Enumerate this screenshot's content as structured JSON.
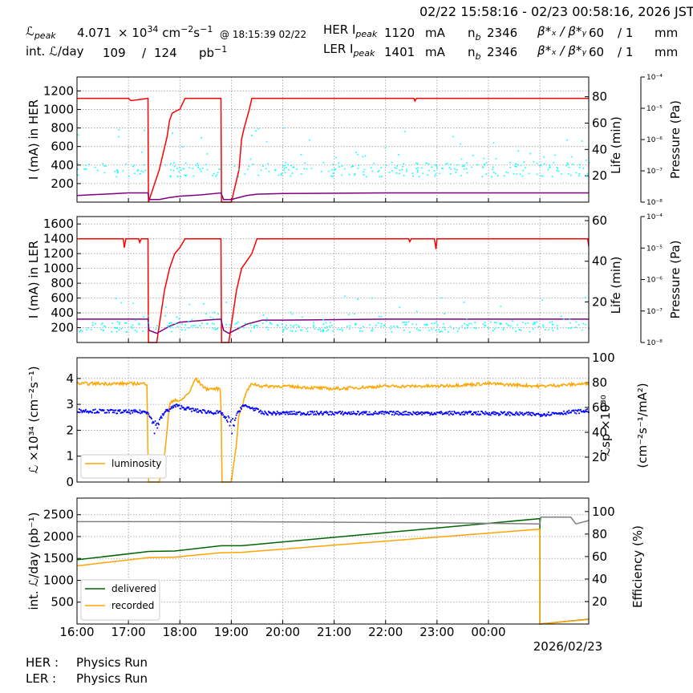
{
  "header": {
    "date_range": "02/22 15:58:16 - 02/23 00:58:16, 2026 JST",
    "lpeak_label": "ℒ",
    "lpeak_sub": "peak",
    "lpeak_value": "4.071",
    "lpeak_unit_a": "× 10",
    "lpeak_unit_exp": "34",
    "lpeak_unit_b": "cm",
    "lpeak_unit_b_exp": "−2",
    "lpeak_unit_c": "s",
    "lpeak_unit_c_exp": "−1",
    "lpeak_time": "@ 18:15:39 02/22",
    "intl_label": "int. ℒ/day",
    "intl_value": "109",
    "intl_slash": "/",
    "intl_total": "124",
    "intl_unit": "pb",
    "intl_unit_exp": "−1",
    "her_ipeak_label": "HER I",
    "her_ipeak_sub": "peak",
    "her_ipeak_value": "1120",
    "her_ipeak_unit": "mA",
    "ler_ipeak_label": "LER I",
    "ler_ipeak_sub": "peak",
    "ler_ipeak_value": "1401",
    "ler_ipeak_unit": "mA",
    "nb_label": "n",
    "nb_sub": "b",
    "her_nb": "2346",
    "ler_nb": "2346",
    "beta_label": "β*ₓ / β*ᵧ",
    "her_beta_x": "60",
    "her_beta_y": "/ 1",
    "ler_beta_x": "60",
    "ler_beta_y": "/ 1",
    "beta_unit": "mm"
  },
  "footer": {
    "her_label": "HER :",
    "her_status": "Physics Run",
    "ler_label": "LER :",
    "ler_status": "Physics Run"
  },
  "colors": {
    "current": "#ff0000",
    "life": "#800080",
    "pressure": "#00ffff",
    "luminosity": "#ffa500",
    "specific_lumi": "#0000ff",
    "delivered": "#006400",
    "recorded": "#ffa500",
    "efficiency": "#808080",
    "grid": "#999999"
  },
  "chart_data": [
    {
      "type": "line",
      "ylabel": "I (mA) in HER",
      "y2label": "Life (min)",
      "y3label": "Pressure (Pa)",
      "ylim": [
        0,
        1350
      ],
      "yticks": [
        200,
        400,
        600,
        800,
        1000,
        1200
      ],
      "y2lim": [
        0,
        95
      ],
      "y2ticks": [
        20,
        40,
        60,
        80
      ],
      "y3ticks": [
        "10⁻⁸",
        "10⁻⁷",
        "10⁻⁶",
        "10⁻⁵",
        "10⁻⁴"
      ],
      "series": [
        {
          "key": "current",
          "axis": "y",
          "x": [
            16.0,
            17.0,
            17.05,
            17.38,
            17.39,
            17.6,
            17.75,
            17.8,
            17.85,
            17.95,
            18.0,
            18.1,
            18.2,
            18.8,
            18.81,
            19.0,
            19.15,
            19.2,
            19.25,
            19.35,
            19.4,
            19.6,
            20,
            21,
            22,
            22.55,
            22.57,
            22.6,
            23,
            24,
            25,
            25.95
          ],
          "y": [
            1120,
            1120,
            1095,
            1120,
            0,
            350,
            700,
            880,
            960,
            990,
            1000,
            1120,
            1120,
            1120,
            0,
            0,
            350,
            680,
            800,
            1000,
            1120,
            1120,
            1120,
            1120,
            1120,
            1120,
            1090,
            1120,
            1120,
            1120,
            1120,
            1120
          ]
        },
        {
          "key": "life",
          "axis": "y2",
          "x": [
            16.0,
            17.0,
            17.38,
            17.4,
            17.6,
            17.8,
            18.0,
            18.4,
            18.8,
            18.85,
            19.0,
            19.3,
            19.5,
            20,
            22,
            24,
            25.95
          ],
          "y": [
            5,
            7,
            7,
            2,
            2,
            3.5,
            4.5,
            5.5,
            7,
            2,
            2,
            5,
            6,
            6.5,
            7,
            7,
            7
          ]
        },
        {
          "key": "pressure",
          "axis": "y3",
          "scatter": true,
          "band": [
            280,
            560
          ],
          "x_start": 16.0,
          "x_end": 25.95,
          "gap": [
            [
              17.38,
              17.75
            ],
            [
              18.8,
              19.15
            ]
          ]
        }
      ],
      "x_range": [
        16.0,
        25.95
      ]
    },
    {
      "type": "line",
      "ylabel": "I (mA) in LER",
      "y2label": "Life (min)",
      "y3label": "Pressure (Pa)",
      "ylim": [
        0,
        1700
      ],
      "yticks": [
        200,
        400,
        600,
        800,
        1000,
        1200,
        1400,
        1600
      ],
      "y2lim": [
        0,
        62
      ],
      "y2ticks": [
        20,
        40,
        60
      ],
      "y3ticks": [
        "10⁻⁸",
        "10⁻⁷",
        "10⁻⁶",
        "10⁻⁵",
        "10⁻⁴"
      ],
      "series": [
        {
          "key": "current",
          "axis": "y",
          "x": [
            16.0,
            16.9,
            16.92,
            16.95,
            17.0,
            17.2,
            17.22,
            17.25,
            17.38,
            17.39,
            17.55,
            17.7,
            17.8,
            17.9,
            18.0,
            18.1,
            18.8,
            18.81,
            18.95,
            19.1,
            19.2,
            19.3,
            19.4,
            19.5,
            20,
            21,
            22,
            22.45,
            22.47,
            22.5,
            22.95,
            22.98,
            23,
            24,
            25,
            25.93,
            25.95
          ],
          "y": [
            1400,
            1400,
            1280,
            1400,
            1400,
            1400,
            1350,
            1400,
            1400,
            0,
            0,
            700,
            1000,
            1200,
            1280,
            1400,
            1400,
            0,
            0,
            700,
            1000,
            1100,
            1200,
            1400,
            1400,
            1400,
            1400,
            1400,
            1360,
            1400,
            1400,
            1260,
            1400,
            1400,
            1400,
            1400,
            1300
          ]
        },
        {
          "key": "life",
          "axis": "y2",
          "x": [
            16.0,
            17.0,
            17.38,
            17.4,
            17.55,
            17.8,
            18.0,
            18.5,
            18.8,
            18.85,
            18.95,
            19.3,
            19.6,
            20,
            22,
            24,
            25.95
          ],
          "y": [
            11.5,
            11.5,
            11.5,
            6,
            4.5,
            8,
            10,
            11,
            11.5,
            6,
            4.5,
            9,
            11,
            11,
            11.5,
            11.5,
            11.5
          ]
        },
        {
          "key": "pressure",
          "axis": "y3",
          "scatter": true,
          "band": [
            150,
            400
          ],
          "x_start": 16.0,
          "x_end": 25.95,
          "gap": [
            [
              17.38,
              17.6
            ],
            [
              18.8,
              19.1
            ]
          ]
        }
      ],
      "x_range": [
        16.0,
        25.95
      ]
    },
    {
      "type": "line",
      "ylabel": "ℒ ×10³⁴ (cm⁻²s⁻¹)",
      "y2label": "ℒsp ×10³⁰ (cm⁻²s⁻¹/mA²)",
      "ylim": [
        0,
        4.8
      ],
      "yticks": [
        0,
        1,
        2,
        3,
        4
      ],
      "y2lim": [
        0,
        100
      ],
      "y2ticks": [
        20,
        40,
        60,
        80,
        100
      ],
      "legend": [
        "luminosity"
      ],
      "series": [
        {
          "key": "luminosity",
          "name": "luminosity",
          "axis": "y",
          "noise": 0.12,
          "x": [
            16.0,
            17.0,
            17.37,
            17.38,
            17.6,
            17.7,
            17.75,
            17.8,
            17.9,
            18.0,
            18.2,
            18.3,
            18.5,
            18.8,
            18.81,
            19.0,
            19.1,
            19.15,
            19.3,
            19.4,
            19.6,
            20,
            21,
            22,
            23,
            24,
            25,
            25.95
          ],
          "y": [
            3.8,
            3.8,
            3.8,
            0,
            0,
            1.0,
            2.0,
            3.0,
            3.2,
            3.1,
            3.5,
            4.0,
            3.6,
            3.6,
            0,
            0,
            1.5,
            2.6,
            3.5,
            3.8,
            3.7,
            3.7,
            3.6,
            3.7,
            3.7,
            3.8,
            3.7,
            3.8
          ]
        },
        {
          "key": "specific_lumi",
          "axis": "y2",
          "scatter": true,
          "noise": 1.5,
          "x": [
            16.0,
            17.0,
            17.37,
            17.5,
            17.7,
            17.9,
            18.1,
            18.3,
            18.8,
            19.0,
            19.1,
            19.2,
            19.4,
            19.6,
            20,
            22,
            24,
            25,
            25.95
          ],
          "y": [
            58,
            57,
            57,
            45,
            57,
            62,
            60,
            58,
            56,
            45,
            55,
            62,
            60,
            56,
            56,
            56,
            56,
            55,
            58
          ]
        }
      ],
      "x_range": [
        16.0,
        25.95
      ]
    },
    {
      "type": "line",
      "ylabel": "int. ℒ/day (pb⁻¹)",
      "y2label": "Efficiency (%)",
      "ylim": [
        0,
        2880
      ],
      "yticks": [
        500,
        1000,
        1500,
        2000,
        2500
      ],
      "y2lim": [
        0,
        112
      ],
      "y2ticks": [
        20,
        40,
        60,
        80,
        100
      ],
      "legend": [
        "delivered",
        "recorded"
      ],
      "xticks": [
        "16:00",
        "17:00",
        "18:00",
        "19:00",
        "20:00",
        "21:00",
        "22:00",
        "23:00",
        "00:00"
      ],
      "xdate": "2026/02/23",
      "series": [
        {
          "key": "delivered",
          "name": "delivered",
          "axis": "y",
          "x": [
            16.0,
            17.4,
            17.9,
            18.8,
            19.2,
            25.0,
            25.0,
            25.95
          ],
          "y": [
            1470,
            1660,
            1670,
            1790,
            1790,
            2410,
            0,
            110
          ]
        },
        {
          "key": "recorded",
          "name": "recorded",
          "axis": "y",
          "x": [
            16.0,
            17.4,
            17.9,
            18.8,
            19.2,
            25.0,
            25.0,
            25.95
          ],
          "y": [
            1330,
            1520,
            1530,
            1630,
            1640,
            2170,
            0,
            105
          ]
        },
        {
          "key": "efficiency",
          "axis": "y2",
          "x": [
            16.0,
            19.0,
            23.0,
            25.0,
            25.02,
            25.6,
            25.7,
            25.95
          ],
          "y": [
            91,
            91,
            90,
            89,
            95,
            95,
            89,
            92
          ]
        }
      ],
      "x_range": [
        16.0,
        25.95
      ]
    }
  ]
}
